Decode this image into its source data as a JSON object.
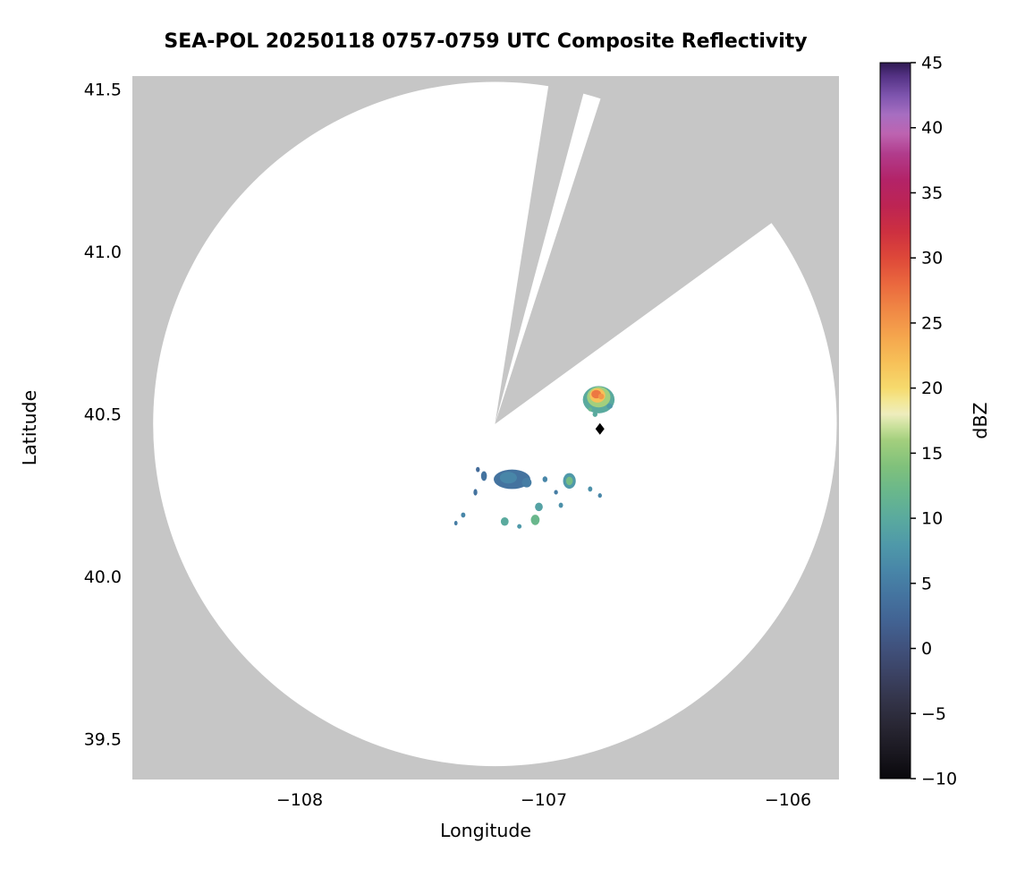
{
  "chart_data": {
    "type": "heatmap",
    "subtype": "radar-ppi-composite-reflectivity",
    "title": "SEA-POL 20250118 0757-0759 UTC Composite Reflectivity",
    "xlabel": "Longitude",
    "ylabel": "Latitude",
    "xlim": [
      -108.685,
      -105.791
    ],
    "ylim": [
      39.376,
      41.541
    ],
    "xticks": [
      -108,
      -107,
      -106
    ],
    "xtick_labels": [
      "−108",
      "−107",
      "−106"
    ],
    "yticks": [
      39.5,
      40.0,
      40.5,
      41.0,
      41.5
    ],
    "ytick_labels": [
      "39.5",
      "40.0",
      "40.5",
      "41.0",
      "41.5"
    ],
    "grid": false,
    "legend": "none",
    "background_color": "#c6c6c6",
    "coverage": {
      "center_lon": -107.2,
      "center_lat": 40.47,
      "radius_lon_deg": 1.4,
      "radius_lat_deg": 1.053,
      "fill": "#ffffff"
    },
    "blocked_sectors_deg": [
      {
        "from": 9,
        "to": 15
      },
      {
        "from": 18,
        "to": 54
      }
    ],
    "radar_marker": {
      "lon": -106.77,
      "lat": 40.455,
      "shape": "diamond",
      "color": "#000000"
    },
    "colorbar": {
      "label": "dBZ",
      "min": -10,
      "max": 45,
      "ticks": [
        -10,
        -5,
        0,
        5,
        10,
        15,
        20,
        25,
        30,
        35,
        40,
        45
      ],
      "tick_labels": [
        "−10",
        "−5",
        "0",
        "5",
        "10",
        "15",
        "20",
        "25",
        "30",
        "35",
        "40",
        "45"
      ],
      "stops": [
        {
          "v": -10,
          "c": "#09080c"
        },
        {
          "v": -8,
          "c": "#1a1820"
        },
        {
          "v": -6,
          "c": "#282633"
        },
        {
          "v": -4,
          "c": "#333449"
        },
        {
          "v": -2,
          "c": "#3b4263"
        },
        {
          "v": 0,
          "c": "#40517c"
        },
        {
          "v": 2,
          "c": "#426292"
        },
        {
          "v": 4,
          "c": "#44739f"
        },
        {
          "v": 6,
          "c": "#4886a8"
        },
        {
          "v": 8,
          "c": "#4f99a9"
        },
        {
          "v": 10,
          "c": "#5aaa9e"
        },
        {
          "v": 12,
          "c": "#69b78c"
        },
        {
          "v": 14,
          "c": "#80c17b"
        },
        {
          "v": 16,
          "c": "#a3cf7d"
        },
        {
          "v": 17,
          "c": "#c8e09a"
        },
        {
          "v": 18,
          "c": "#eeedbd"
        },
        {
          "v": 19,
          "c": "#f3e795"
        },
        {
          "v": 20,
          "c": "#f6da6d"
        },
        {
          "v": 22,
          "c": "#f7c058"
        },
        {
          "v": 24,
          "c": "#f5a54d"
        },
        {
          "v": 26,
          "c": "#f08845"
        },
        {
          "v": 28,
          "c": "#ea683e"
        },
        {
          "v": 30,
          "c": "#de4839"
        },
        {
          "v": 32,
          "c": "#cd3040"
        },
        {
          "v": 34,
          "c": "#bd2453"
        },
        {
          "v": 36,
          "c": "#b32368"
        },
        {
          "v": 38,
          "c": "#b13c8c"
        },
        {
          "v": 39.5,
          "c": "#bd63b0"
        },
        {
          "v": 41,
          "c": "#a76ec1"
        },
        {
          "v": 42.5,
          "c": "#7d54ae"
        },
        {
          "v": 44,
          "c": "#533183"
        },
        {
          "v": 45,
          "c": "#2f1a52"
        }
      ]
    },
    "echoes": [
      {
        "lon": -106.775,
        "lat": 40.545,
        "rx": 0.065,
        "ry": 0.042,
        "dbz": 10
      },
      {
        "lon": -106.775,
        "lat": 40.553,
        "rx": 0.048,
        "ry": 0.032,
        "dbz": 16
      },
      {
        "lon": -106.78,
        "lat": 40.558,
        "rx": 0.032,
        "ry": 0.022,
        "dbz": 22
      },
      {
        "lon": -106.785,
        "lat": 40.562,
        "rx": 0.02,
        "ry": 0.013,
        "dbz": 27
      },
      {
        "lon": -106.765,
        "lat": 40.555,
        "rx": 0.012,
        "ry": 0.009,
        "dbz": 25
      },
      {
        "lon": -106.73,
        "lat": 40.525,
        "rx": 0.012,
        "ry": 0.008,
        "dbz": 8
      },
      {
        "lon": -106.81,
        "lat": 40.515,
        "rx": 0.008,
        "ry": 0.006,
        "dbz": 12
      },
      {
        "lon": -106.79,
        "lat": 40.5,
        "rx": 0.01,
        "ry": 0.008,
        "dbz": 10
      },
      {
        "lon": -107.13,
        "lat": 40.3,
        "rx": 0.075,
        "ry": 0.03,
        "dbz": 4
      },
      {
        "lon": -107.145,
        "lat": 40.305,
        "rx": 0.035,
        "ry": 0.018,
        "dbz": 6
      },
      {
        "lon": -107.07,
        "lat": 40.29,
        "rx": 0.02,
        "ry": 0.015,
        "dbz": 5
      },
      {
        "lon": -107.245,
        "lat": 40.31,
        "rx": 0.012,
        "ry": 0.015,
        "dbz": 4
      },
      {
        "lon": -107.27,
        "lat": 40.33,
        "rx": 0.008,
        "ry": 0.008,
        "dbz": 3
      },
      {
        "lon": -107.28,
        "lat": 40.26,
        "rx": 0.008,
        "ry": 0.01,
        "dbz": 4
      },
      {
        "lon": -106.895,
        "lat": 40.295,
        "rx": 0.026,
        "ry": 0.024,
        "dbz": 8
      },
      {
        "lon": -106.895,
        "lat": 40.295,
        "rx": 0.014,
        "ry": 0.013,
        "dbz": 13
      },
      {
        "lon": -106.995,
        "lat": 40.3,
        "rx": 0.01,
        "ry": 0.009,
        "dbz": 6
      },
      {
        "lon": -106.95,
        "lat": 40.26,
        "rx": 0.008,
        "ry": 0.007,
        "dbz": 5
      },
      {
        "lon": -106.81,
        "lat": 40.27,
        "rx": 0.009,
        "ry": 0.008,
        "dbz": 7
      },
      {
        "lon": -106.77,
        "lat": 40.25,
        "rx": 0.008,
        "ry": 0.007,
        "dbz": 6
      },
      {
        "lon": -106.93,
        "lat": 40.22,
        "rx": 0.009,
        "ry": 0.008,
        "dbz": 7
      },
      {
        "lon": -107.02,
        "lat": 40.215,
        "rx": 0.016,
        "ry": 0.013,
        "dbz": 9
      },
      {
        "lon": -107.035,
        "lat": 40.175,
        "rx": 0.018,
        "ry": 0.016,
        "dbz": 12
      },
      {
        "lon": -107.16,
        "lat": 40.17,
        "rx": 0.016,
        "ry": 0.013,
        "dbz": 10
      },
      {
        "lon": -107.1,
        "lat": 40.155,
        "rx": 0.009,
        "ry": 0.007,
        "dbz": 8
      },
      {
        "lon": -107.33,
        "lat": 40.19,
        "rx": 0.009,
        "ry": 0.008,
        "dbz": 6
      },
      {
        "lon": -107.36,
        "lat": 40.165,
        "rx": 0.007,
        "ry": 0.007,
        "dbz": 5
      }
    ]
  }
}
